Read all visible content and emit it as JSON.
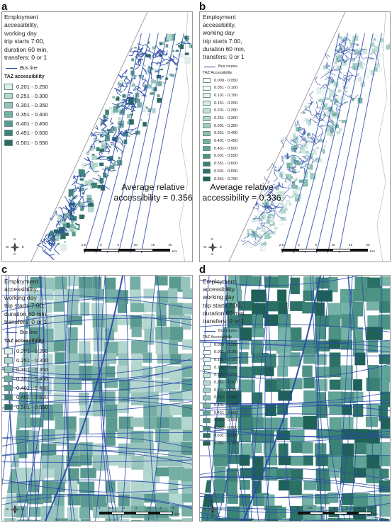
{
  "panels": [
    {
      "letter": "a",
      "legend_title": "Employment\naccessibility,\nworking day\ntrip starts 7:00,\nduration 60 min,\ntransfers: 0 or 1",
      "bus_label": "Bus line",
      "taz_title": "TAZ accessibility",
      "classes": [
        "0.201 - 0.250",
        "0.251 - 0.300",
        "0.301 - 0.350",
        "0.351 - 0.400",
        "0.401 - 0.450",
        "0.451 - 0.500",
        "0.501 - 0.550"
      ],
      "avg_line1": "Average relative",
      "avg_line2": "accessibility = 0.356",
      "scale_ticks": [
        "2.5",
        "0",
        "5",
        "10",
        "15",
        "20"
      ],
      "scale_unit": "Km",
      "compass": {
        "n": "N",
        "s": "S",
        "e": "E",
        "w": "W"
      }
    },
    {
      "letter": "b",
      "legend_title": "Employment\naccessibility,\nworking day\ntrip starts 7:00,\nduration 60 min,\ntransfers: 0 or 1",
      "bus_label": "Bus routes",
      "taz_title": "TAZ Accessibility",
      "classes": [
        "0.000 - 0.050",
        "0.051 - 0.100",
        "0.101 - 0.150",
        "0.151 - 0.200",
        "0.201 - 0.250",
        "0.251 - 0.300",
        "0.301 - 0.350",
        "0.351 - 0.400",
        "0.401 - 0.450",
        "0.451 - 0.500",
        "0.501 - 0.550",
        "0.551 - 0.600",
        "0.601 - 0.650",
        "0.651 - 0.700"
      ],
      "avg_line1": "Average relative",
      "avg_line2": "accessibility = 0.336",
      "scale_ticks": [
        "2.5",
        "0",
        "5",
        "10",
        "15",
        "20"
      ],
      "scale_unit": "Km",
      "compass": {
        "n": "N",
        "s": "S",
        "e": "E",
        "w": "W"
      }
    },
    {
      "letter": "c",
      "legend_title": "Employment\naccessibility,\nworking day\ntrip starts 7:00,\nduration 60 min,\ntransfers: 0 or 1",
      "bus_label": "Bus line",
      "taz_title": "TAZ accessibility",
      "classes": [
        "0.201 - 0.250",
        "0.251 - 0.300",
        "0.301 - 0.350",
        "0.351 - 0.400",
        "0.401 - 0.450",
        "0.451 - 0.500",
        "0.501 - 0.550"
      ],
      "scale_ticks": [
        "1",
        "0.5",
        "0",
        "1",
        "2",
        "3",
        "4"
      ],
      "scale_unit": "Km",
      "compass": {
        "n": "N",
        "s": "S",
        "e": "E",
        "w": "W"
      }
    },
    {
      "letter": "d",
      "legend_title": "Employment\naccessibility,\nworking day\ntrip starts 7:00,\nduration 60 min,\ntransfers: 0 or 1",
      "bus_label": "Bus routes",
      "taz_title": "TAZ Accessibility",
      "classes": [
        "0.000 - 0.050",
        "0.051 - 0.100",
        "0.101 - 0.150",
        "0.151 - 0.200",
        "0.201 - 0.250",
        "0.251 - 0.300",
        "0.301 - 0.350",
        "0.351 - 0.400",
        "0.401 - 0.450",
        "0.451 - 0.500",
        "0.501 - 0.550",
        "0.551 - 0.600",
        "0.601 - 0.650",
        "0.651 - 0.700"
      ],
      "scale_ticks": [
        "1",
        "0.5",
        "0",
        "1",
        "2",
        "3",
        "4"
      ],
      "scale_unit": "Km",
      "compass": {
        "n": "N",
        "s": "S",
        "e": "E",
        "w": "W"
      }
    }
  ],
  "colors": {
    "bus_line": "#2a4aa8",
    "ramp7": [
      "#dff0ec",
      "#b3d6cf",
      "#96c4bc",
      "#74aea4",
      "#5a9a90",
      "#3f8379",
      "#2d6c62"
    ],
    "ramp14": [
      "#ffffff",
      "#f2faf8",
      "#e3f2ee",
      "#d4ebe5",
      "#c3e2db",
      "#b1d8cf",
      "#9ecdc3",
      "#8ac0b5",
      "#75b2a7",
      "#60a397",
      "#4c9386",
      "#3a8275",
      "#2b7165",
      "#1f6156"
    ],
    "frame": "#9a9a9a",
    "coast": "#8a8a8a"
  }
}
